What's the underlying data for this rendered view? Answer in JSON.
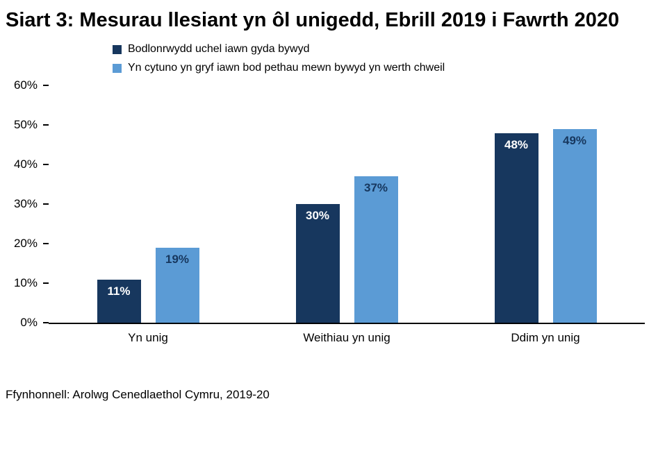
{
  "title": "Siart 3: Mesurau llesiant yn ôl unigedd, Ebrill 2019 i Fawrth 2020",
  "source": "Ffynhonnell: Arolwg Cenedlaethol Cymru, 2019-20",
  "colors": {
    "series1": "#17375E",
    "series2": "#5B9BD5",
    "series1_label": "#FFFFFF",
    "series2_label": "#17375E",
    "axis": "#000000"
  },
  "chart_data": {
    "type": "bar",
    "title": "Siart 3: Mesurau llesiant yn ôl unigedd, Ebrill 2019 i Fawrth 2020",
    "categories": [
      "Yn unig",
      "Weithiau yn unig",
      "Ddim yn unig"
    ],
    "series": [
      {
        "name": "Bodlonrwydd uchel iawn gyda bywyd",
        "color": "#17375E",
        "label_color": "#FFFFFF",
        "values": [
          11,
          30,
          48
        ]
      },
      {
        "name": "Yn cytuno yn gryf iawn bod pethau mewn bywyd yn werth chweil",
        "color": "#5B9BD5",
        "label_color": "#17375E",
        "values": [
          19,
          37,
          49
        ]
      }
    ],
    "xlabel": "",
    "ylabel": "",
    "ylim": [
      0,
      60
    ],
    "ytick_step": 10,
    "ytick_labels": [
      "0%",
      "10%",
      "20%",
      "30%",
      "40%",
      "50%",
      "60%"
    ],
    "data_label_format": "{v}%",
    "grid": false,
    "legend_position": "top-left"
  }
}
